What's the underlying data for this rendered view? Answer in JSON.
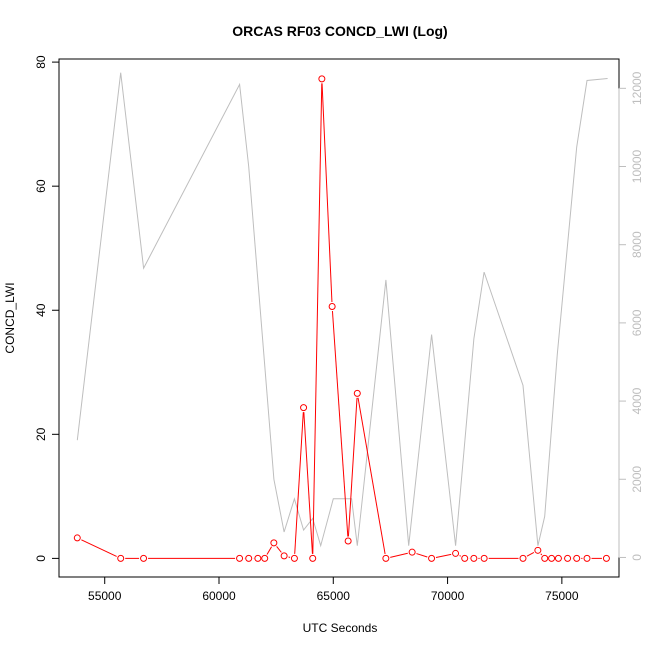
{
  "chart_data": {
    "type": "line",
    "title": "ORCAS RF03 CONCD_LWI (Log)",
    "xlabel": "UTC Seconds",
    "ylabel": "CONCD_LWI",
    "xlim": [
      53000,
      77500
    ],
    "ylim": [
      -3,
      80.5
    ],
    "y2lim": [
      -500,
      12750
    ],
    "x_ticks": [
      55000,
      60000,
      65000,
      70000,
      75000
    ],
    "y_ticks": [
      0,
      20,
      40,
      60,
      80
    ],
    "y2_ticks": [
      0,
      2000,
      4000,
      6000,
      8000,
      10000,
      12000
    ],
    "colors": {
      "primary": "#ff0000",
      "secondary": "#bebebe",
      "axis": "#000000"
    },
    "series": [
      {
        "axis": "left",
        "style": "line+points",
        "x": [
          53800,
          55700,
          56700,
          60900,
          61300,
          61700,
          62000,
          62400,
          62850,
          63300,
          63700,
          64100,
          64500,
          64950,
          65650,
          66050,
          67300,
          68450,
          69300,
          70350,
          70750,
          71150,
          71600,
          73300,
          73950,
          74250,
          74550,
          74850,
          75250,
          75650,
          76100,
          76950
        ],
        "y": [
          3.3,
          0.0,
          0.0,
          0.0,
          0.0,
          0.0,
          0.0,
          2.5,
          0.4,
          0.0,
          24.3,
          0.0,
          77.3,
          40.6,
          2.8,
          26.6,
          0.0,
          1.0,
          0.0,
          0.8,
          0.0,
          0.0,
          0.0,
          0.0,
          1.3,
          0.0,
          0.0,
          0.0,
          0.0,
          0.0,
          0.0,
          0.0
        ]
      },
      {
        "axis": "right",
        "style": "line",
        "x": [
          53800,
          55700,
          56700,
          60900,
          61300,
          62400,
          62850,
          63300,
          63700,
          64100,
          64450,
          65000,
          65800,
          66050,
          67300,
          68300,
          69300,
          70350,
          71150,
          71600,
          73300,
          73950,
          74250,
          74800,
          75650,
          76100,
          77000
        ],
        "y": [
          3000,
          12400,
          7400,
          12100,
          10000,
          2000,
          650,
          1500,
          700,
          1000,
          300,
          1500,
          1500,
          300,
          7100,
          300,
          5700,
          300,
          5600,
          7300,
          4400,
          300,
          1050,
          5200,
          10500,
          12200,
          12250
        ]
      }
    ]
  }
}
